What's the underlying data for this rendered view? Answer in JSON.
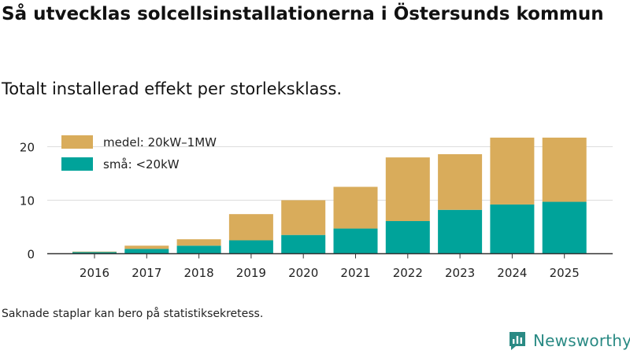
{
  "chart_data": {
    "type": "bar",
    "stacked": true,
    "title": "Så utvecklas solcellsinstallationerna i Östersunds kommun",
    "subtitle": "Totalt installerad effekt per storleksklass.",
    "categories": [
      "2016",
      "2017",
      "2018",
      "2019",
      "2020",
      "2021",
      "2022",
      "2023",
      "2024",
      "2025"
    ],
    "series": [
      {
        "name": "små: <20kW",
        "color": "#00a39a",
        "values": [
          0.3,
          0.9,
          1.5,
          2.5,
          3.5,
          4.7,
          6.1,
          8.2,
          9.2,
          9.7
        ]
      },
      {
        "name": "medel: 20kW–1MW",
        "color": "#d9ac5b",
        "values": [
          0.1,
          0.6,
          1.2,
          4.9,
          6.5,
          7.8,
          11.9,
          10.4,
          12.5,
          12.0
        ]
      }
    ],
    "ylim": [
      0,
      22
    ],
    "yticks": [
      0,
      10,
      20
    ],
    "xlabel": "",
    "ylabel": "",
    "grid": true,
    "legend_position": "top-left",
    "note": "Saknade staplar kan bero på statistiksekretess."
  },
  "brand": {
    "name": "Newsworthy",
    "logo_icon": "newsworthy-logo-icon",
    "color": "#2a8a84"
  }
}
